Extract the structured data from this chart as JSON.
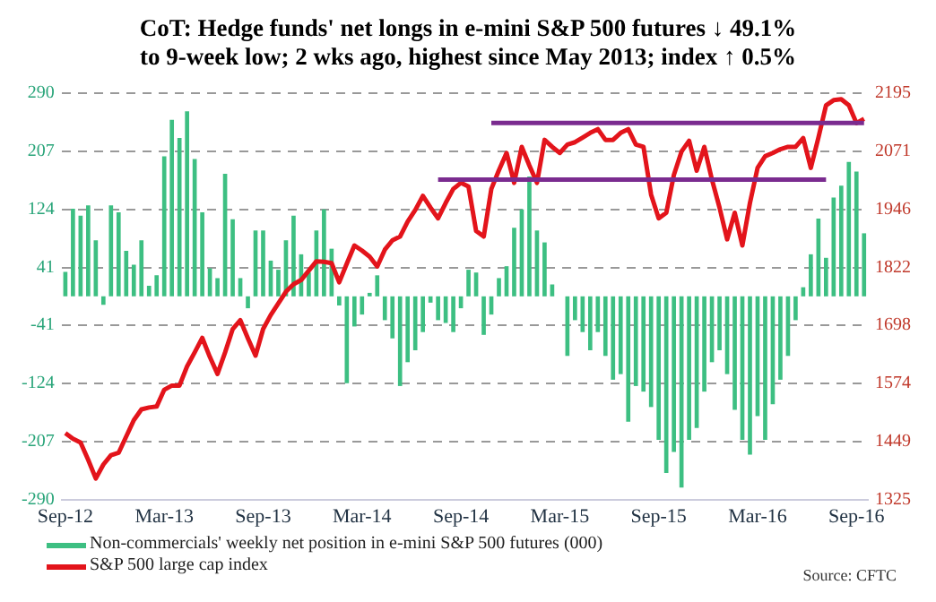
{
  "chart_data": {
    "type": "bar",
    "title": "CoT: Hedge funds' net longs in e-mini S&P 500 futures ↓ 49.1% to 9-week low; 2 wks ago, highest since May 2013; index ↑ 0.5%",
    "annotations": [
      "Source: CFTC"
    ],
    "categories": [
      "Sep-12",
      null,
      null,
      null,
      null,
      null,
      null,
      null,
      null,
      null,
      null,
      null,
      null,
      "Mar-13",
      null,
      null,
      null,
      null,
      null,
      null,
      null,
      null,
      null,
      null,
      null,
      null,
      "Sep-13",
      null,
      null,
      null,
      null,
      null,
      null,
      null,
      null,
      null,
      null,
      null,
      null,
      "Mar-14",
      null,
      null,
      null,
      null,
      null,
      null,
      null,
      null,
      null,
      null,
      null,
      null,
      "Sep-14",
      null,
      null,
      null,
      null,
      null,
      null,
      null,
      null,
      null,
      null,
      null,
      null,
      "Mar-15",
      null,
      null,
      null,
      null,
      null,
      null,
      null,
      null,
      null,
      null,
      null,
      null,
      "Sep-15",
      null,
      null,
      null,
      null,
      null,
      null,
      null,
      null,
      null,
      null,
      null,
      null,
      "Mar-16",
      null,
      null,
      null,
      null,
      null,
      null,
      null,
      null,
      null,
      null,
      null,
      null,
      "Sep-16",
      null
    ],
    "series": [
      {
        "name": "Non-commercials' weekly net position in e-mini S&P 500 futures (000)",
        "color": "#3dbf82",
        "values": [
          35,
          125,
          115,
          130,
          80,
          -12,
          130,
          120,
          65,
          45,
          80,
          15,
          30,
          200,
          252,
          226,
          264,
          196,
          120,
          40,
          26,
          175,
          110,
          26,
          -17,
          94,
          94,
          51,
          38,
          80,
          115,
          60,
          34,
          94,
          124,
          68,
          -13,
          -124,
          -43,
          -26,
          5,
          30,
          -34,
          -60,
          -128,
          -94,
          -77,
          -51,
          -9,
          -34,
          -38,
          -51,
          -17,
          38,
          34,
          -55,
          -26,
          26,
          43,
          98,
          124,
          171,
          94,
          77,
          17,
          0,
          -85,
          -34,
          -51,
          -77,
          -51,
          -85,
          -119,
          -111,
          -179,
          -128,
          -136,
          -158,
          -205,
          -252,
          -222,
          -273,
          -205,
          -188,
          -136,
          -94,
          -77,
          -111,
          -162,
          -205,
          -226,
          -171,
          -205,
          -154,
          -119,
          -85,
          -34,
          13,
          60,
          111,
          55,
          141,
          158,
          192,
          178,
          90
        ]
      },
      {
        "name": "S&P 500 large cap index",
        "type": "line",
        "axis": "y2",
        "color": "#e3141b",
        "values": [
          1467,
          1455,
          1447,
          1410,
          1370,
          1400,
          1420,
          1425,
          1460,
          1495,
          1518,
          1522,
          1524,
          1560,
          1569,
          1569,
          1610,
          1640,
          1671,
          1630,
          1594,
          1640,
          1690,
          1709,
          1670,
          1633,
          1690,
          1720,
          1745,
          1770,
          1786,
          1795,
          1815,
          1835,
          1834,
          1831,
          1790,
          1830,
          1869,
          1858,
          1845,
          1824,
          1860,
          1880,
          1888,
          1920,
          1945,
          1975,
          1950,
          1927,
          1960,
          1990,
          2003,
          1995,
          1900,
          1888,
          1990,
          2030,
          2067,
          2003,
          2080,
          2040,
          2003,
          2095,
          2080,
          2067,
          2085,
          2090,
          2100,
          2110,
          2118,
          2095,
          2095,
          2110,
          2118,
          2085,
          2080,
          1978,
          1927,
          1939,
          2020,
          2070,
          2093,
          2029,
          2080,
          2010,
          1950,
          1882,
          1939,
          1869,
          1960,
          2035,
          2060,
          2067,
          2075,
          2080,
          2080,
          2099,
          2035,
          2100,
          2169,
          2180,
          2182,
          2169,
          2131,
          2140
        ]
      },
      {
        "type": "line",
        "axis": "y2",
        "color": "#7a2b8f",
        "values": [
          null,
          null,
          null,
          null,
          null,
          null,
          null,
          null,
          null,
          null,
          null,
          null,
          null,
          null,
          null,
          null,
          null,
          null,
          null,
          null,
          null,
          null,
          null,
          null,
          null,
          null,
          null,
          null,
          null,
          null,
          null,
          null,
          null,
          null,
          null,
          null,
          null,
          null,
          null,
          null,
          null,
          null,
          null,
          null,
          null,
          null,
          null,
          null,
          null,
          2010,
          null,
          null,
          null,
          null,
          null,
          null,
          null,
          null,
          null,
          null,
          null,
          null,
          null,
          null,
          null,
          null,
          null,
          null,
          null,
          null,
          null,
          null,
          null,
          null,
          null,
          null,
          null,
          null,
          null,
          null,
          null,
          null,
          null,
          null,
          null,
          null,
          null,
          null,
          null,
          null,
          null,
          null,
          null,
          null,
          null,
          null,
          null,
          null,
          null,
          null,
          2010,
          null,
          null,
          null,
          null,
          null
        ]
      },
      {
        "type": "line",
        "axis": "y2",
        "color": "#7a2b8f",
        "values": [
          null,
          null,
          null,
          null,
          null,
          null,
          null,
          null,
          null,
          null,
          null,
          null,
          null,
          null,
          null,
          null,
          null,
          null,
          null,
          null,
          null,
          null,
          null,
          null,
          null,
          null,
          null,
          null,
          null,
          null,
          null,
          null,
          null,
          null,
          null,
          null,
          null,
          null,
          null,
          null,
          null,
          null,
          null,
          null,
          null,
          null,
          null,
          null,
          null,
          null,
          null,
          null,
          null,
          null,
          null,
          null,
          2131,
          null,
          null,
          null,
          null,
          null,
          null,
          null,
          null,
          null,
          null,
          null,
          null,
          null,
          null,
          null,
          null,
          null,
          null,
          null,
          null,
          null,
          null,
          null,
          null,
          null,
          null,
          null,
          null,
          null,
          null,
          null,
          null,
          null,
          null,
          null,
          null,
          null,
          null,
          null,
          null,
          null,
          null,
          null,
          null,
          null,
          null,
          null,
          null,
          2131
        ]
      }
    ],
    "ylim": [
      -290,
      290
    ],
    "yticks": [
      290,
      207,
      124,
      41,
      -41,
      -124,
      -207,
      -290
    ],
    "y2lim": [
      1325,
      2195
    ],
    "y2ticks": [
      2195,
      2071,
      1946,
      1822,
      1698,
      1574,
      1449,
      1325
    ],
    "grid": "y",
    "legend": "bottom"
  }
}
